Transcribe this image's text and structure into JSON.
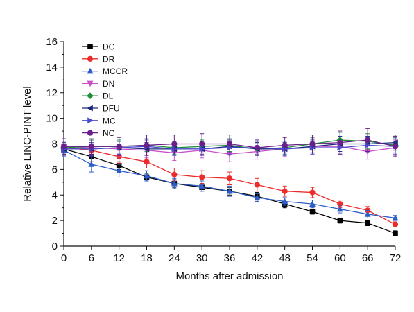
{
  "chart_data": {
    "type": "line",
    "title": "",
    "xlabel": "Months after admission",
    "ylabel": "Relative LINC-PINT level",
    "xlim": [
      0,
      72
    ],
    "ylim": [
      0,
      16
    ],
    "x_ticks": [
      0,
      6,
      12,
      18,
      24,
      30,
      36,
      42,
      48,
      54,
      60,
      66,
      72
    ],
    "y_ticks": [
      0,
      2,
      4,
      6,
      8,
      10,
      12,
      14,
      16
    ],
    "grid": false,
    "legend_position": "top-left",
    "x": [
      0,
      6,
      12,
      18,
      24,
      30,
      36,
      42,
      48,
      54,
      60,
      66,
      72
    ],
    "series": [
      {
        "name": "DC",
        "color": "#000000",
        "marker": "square",
        "values": [
          7.6,
          7.0,
          6.3,
          5.4,
          4.9,
          4.6,
          4.3,
          3.9,
          3.3,
          2.7,
          2.0,
          1.8,
          1.0
        ],
        "errors": [
          0.4,
          0.4,
          0.3,
          0.3,
          0.3,
          0.3,
          0.3,
          0.3,
          0.3,
          0.2,
          0.2,
          0.2,
          0.2
        ]
      },
      {
        "name": "DR",
        "color": "#ee2b2b",
        "marker": "circle",
        "values": [
          7.7,
          7.5,
          7.0,
          6.6,
          5.6,
          5.4,
          5.3,
          4.8,
          4.3,
          4.2,
          3.3,
          2.8,
          1.7
        ],
        "errors": [
          0.4,
          0.4,
          0.5,
          0.5,
          0.5,
          0.5,
          0.5,
          0.5,
          0.4,
          0.4,
          0.3,
          0.3,
          0.2
        ]
      },
      {
        "name": "MCCR",
        "color": "#2b5cc8",
        "marker": "triangle-up",
        "values": [
          7.5,
          6.4,
          5.9,
          5.5,
          4.9,
          4.7,
          4.3,
          3.8,
          3.5,
          3.3,
          2.9,
          2.5,
          2.2
        ],
        "errors": [
          0.5,
          0.6,
          0.5,
          0.4,
          0.4,
          0.4,
          0.4,
          0.3,
          0.3,
          0.3,
          0.3,
          0.3,
          0.2
        ]
      },
      {
        "name": "DN",
        "color": "#c94fc9",
        "marker": "triangle-down",
        "values": [
          7.8,
          7.7,
          7.6,
          7.5,
          7.3,
          7.5,
          7.2,
          7.4,
          7.6,
          7.8,
          7.8,
          7.4,
          7.7
        ],
        "errors": [
          0.6,
          0.6,
          0.6,
          0.6,
          0.6,
          0.6,
          0.6,
          0.6,
          0.6,
          0.6,
          0.6,
          0.6,
          0.6
        ]
      },
      {
        "name": "DL",
        "color": "#1f8f3a",
        "marker": "diamond",
        "values": [
          7.7,
          7.8,
          7.8,
          7.9,
          7.7,
          7.8,
          7.9,
          7.6,
          7.7,
          8.0,
          8.3,
          8.2,
          7.9
        ],
        "errors": [
          0.5,
          0.5,
          0.5,
          0.5,
          0.5,
          0.5,
          0.5,
          0.5,
          0.5,
          0.5,
          0.6,
          0.6,
          0.6
        ]
      },
      {
        "name": "DFU",
        "color": "#1a2a7a",
        "marker": "triangle-left",
        "values": [
          7.6,
          7.6,
          7.7,
          7.6,
          7.6,
          7.6,
          7.8,
          7.6,
          7.6,
          7.8,
          8.0,
          8.0,
          8.1
        ],
        "errors": [
          0.5,
          0.5,
          0.5,
          0.5,
          0.5,
          0.5,
          0.5,
          0.5,
          0.5,
          0.5,
          0.6,
          0.6,
          0.6
        ]
      },
      {
        "name": "MC",
        "color": "#4a4ad0",
        "marker": "triangle-right",
        "values": [
          7.6,
          7.6,
          7.7,
          7.8,
          7.6,
          7.6,
          7.7,
          7.7,
          7.6,
          7.7,
          7.7,
          7.9,
          7.8
        ],
        "errors": [
          0.5,
          0.5,
          0.5,
          0.5,
          0.5,
          0.5,
          0.5,
          0.5,
          0.5,
          0.5,
          0.5,
          0.6,
          0.6
        ]
      },
      {
        "name": "NC",
        "color": "#6a1f8a",
        "marker": "hexagon",
        "values": [
          7.8,
          7.8,
          7.8,
          7.9,
          8.0,
          8.0,
          8.0,
          7.7,
          7.9,
          8.0,
          8.1,
          8.3,
          7.8
        ],
        "errors": [
          0.6,
          0.6,
          0.7,
          0.8,
          0.7,
          0.8,
          0.7,
          0.6,
          0.6,
          0.7,
          0.9,
          0.9,
          0.8
        ]
      }
    ]
  }
}
